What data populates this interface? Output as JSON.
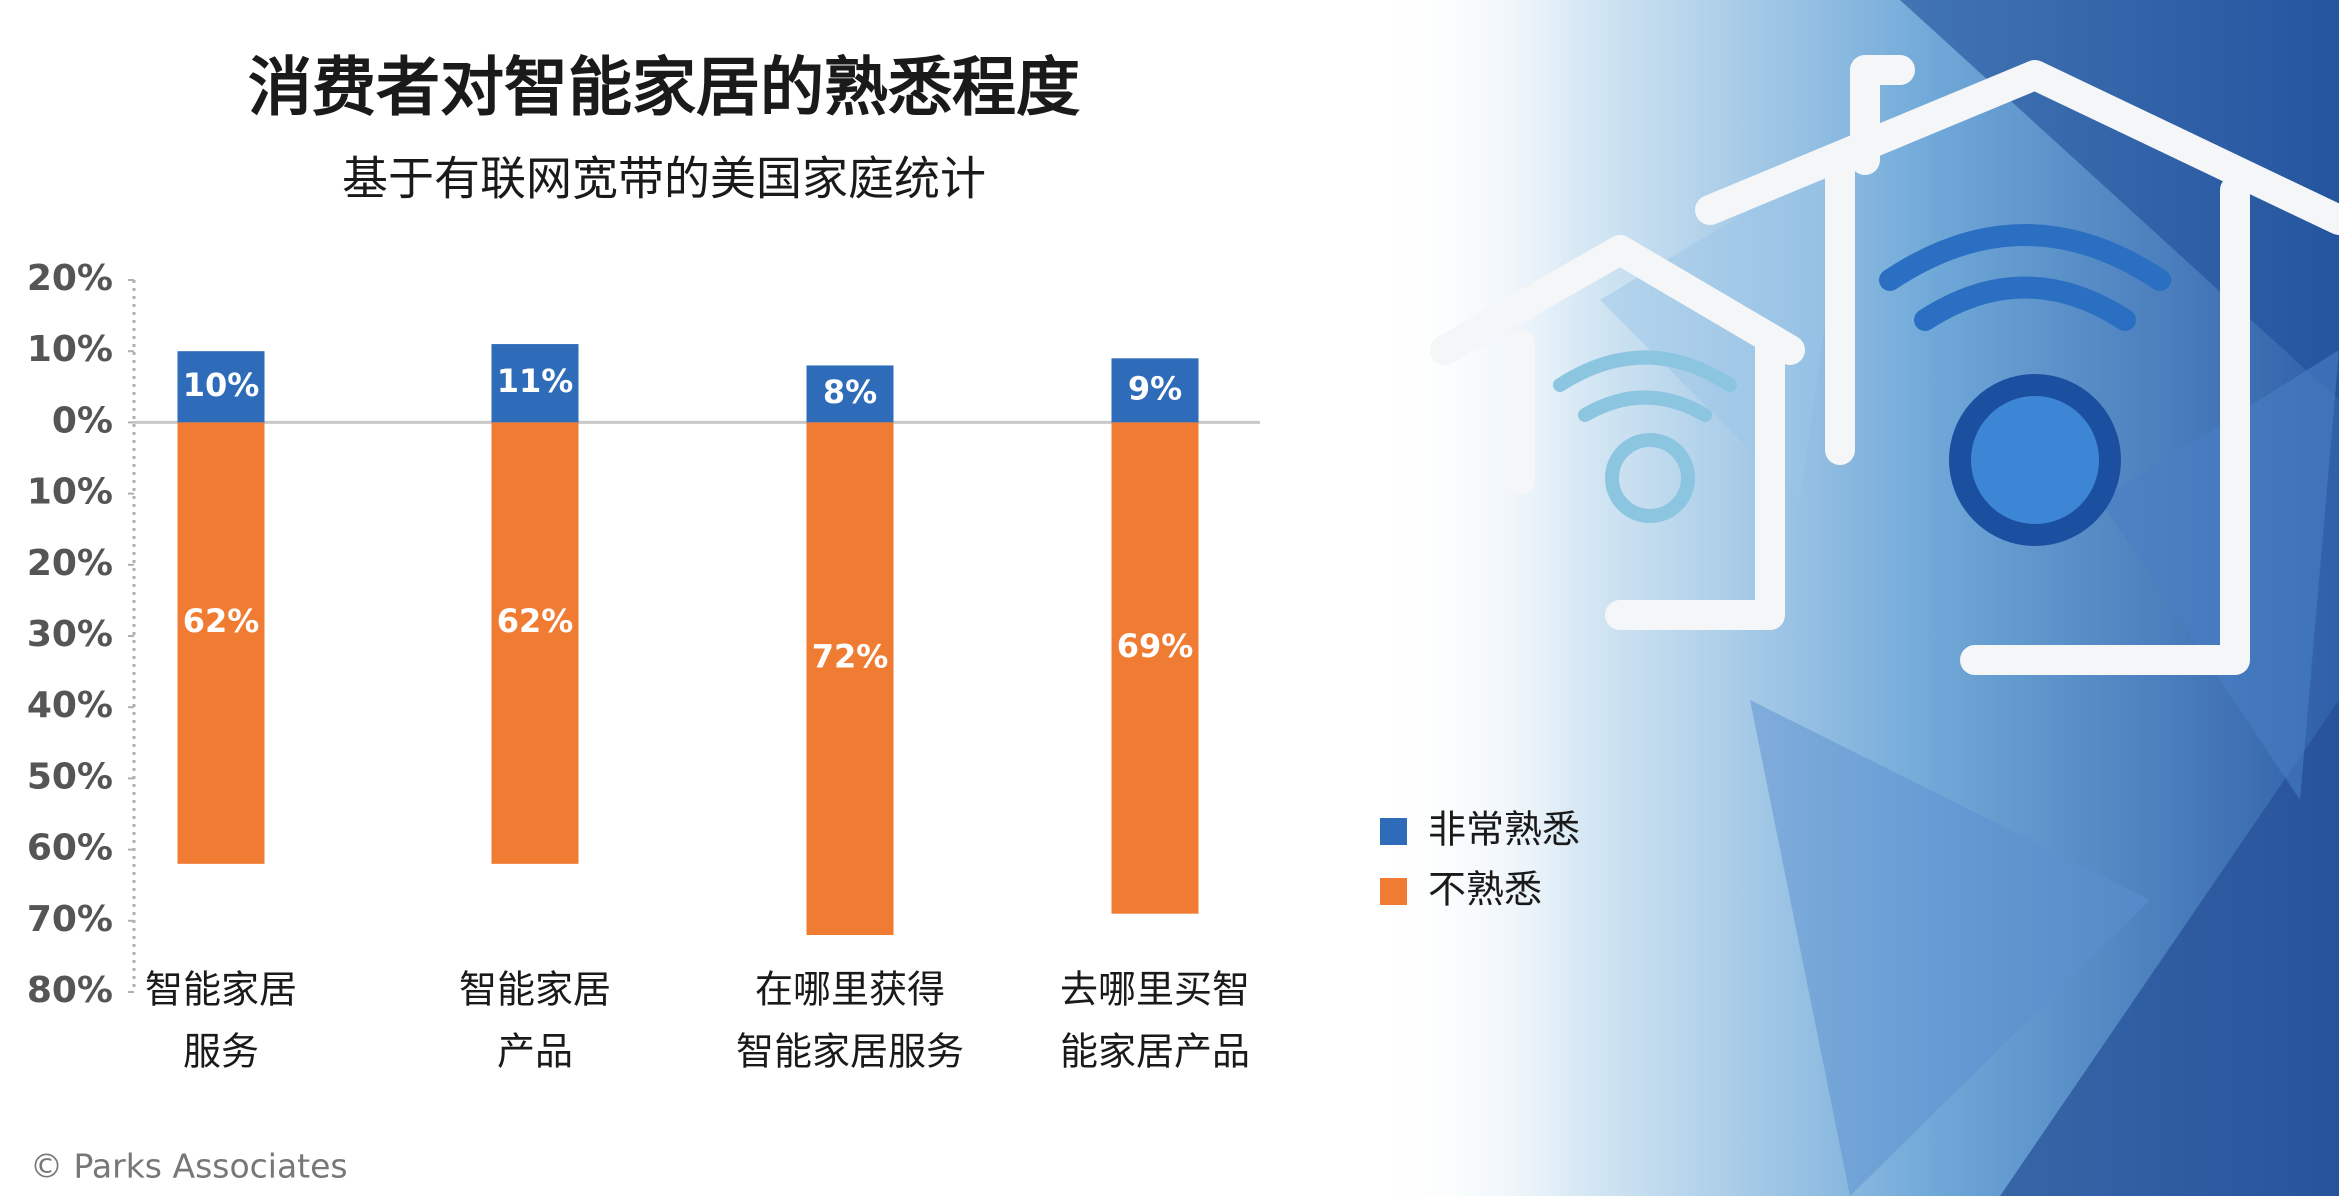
{
  "chart_data": {
    "type": "bar",
    "title": "消费者对智能家居的熟悉程度",
    "subtitle": "基于有联网宽带的美国家庭统计",
    "categories": [
      [
        "智能家居",
        "服务"
      ],
      [
        "智能家居",
        "产品"
      ],
      [
        "在哪里获得",
        "智能家居服务"
      ],
      [
        "去哪里买智",
        "能家居产品"
      ]
    ],
    "series": [
      {
        "name": "非常熟悉",
        "color": "#2e6bb8",
        "values": [
          10,
          11,
          8,
          9
        ],
        "value_labels": [
          "10%",
          "11%",
          "8%",
          "9%"
        ]
      },
      {
        "name": "不熟悉",
        "color": "#f07b32",
        "values": [
          -62,
          -62,
          -72,
          -69
        ],
        "value_labels": [
          "62%",
          "62%",
          "72%",
          "69%"
        ]
      }
    ],
    "ylim": [
      -80,
      20
    ],
    "yticks": [
      {
        "value": 20,
        "label": "20%"
      },
      {
        "value": 10,
        "label": "10%"
      },
      {
        "value": 0,
        "label": "0%"
      },
      {
        "value": -10,
        "label": "10%"
      },
      {
        "value": -20,
        "label": "20%"
      },
      {
        "value": -30,
        "label": "30%"
      },
      {
        "value": -40,
        "label": "40%"
      },
      {
        "value": -50,
        "label": "50%"
      },
      {
        "value": -60,
        "label": "60%"
      },
      {
        "value": -70,
        "label": "70%"
      },
      {
        "value": -80,
        "label": "80%"
      }
    ],
    "legend": "right",
    "source": "© Parks Associates"
  }
}
